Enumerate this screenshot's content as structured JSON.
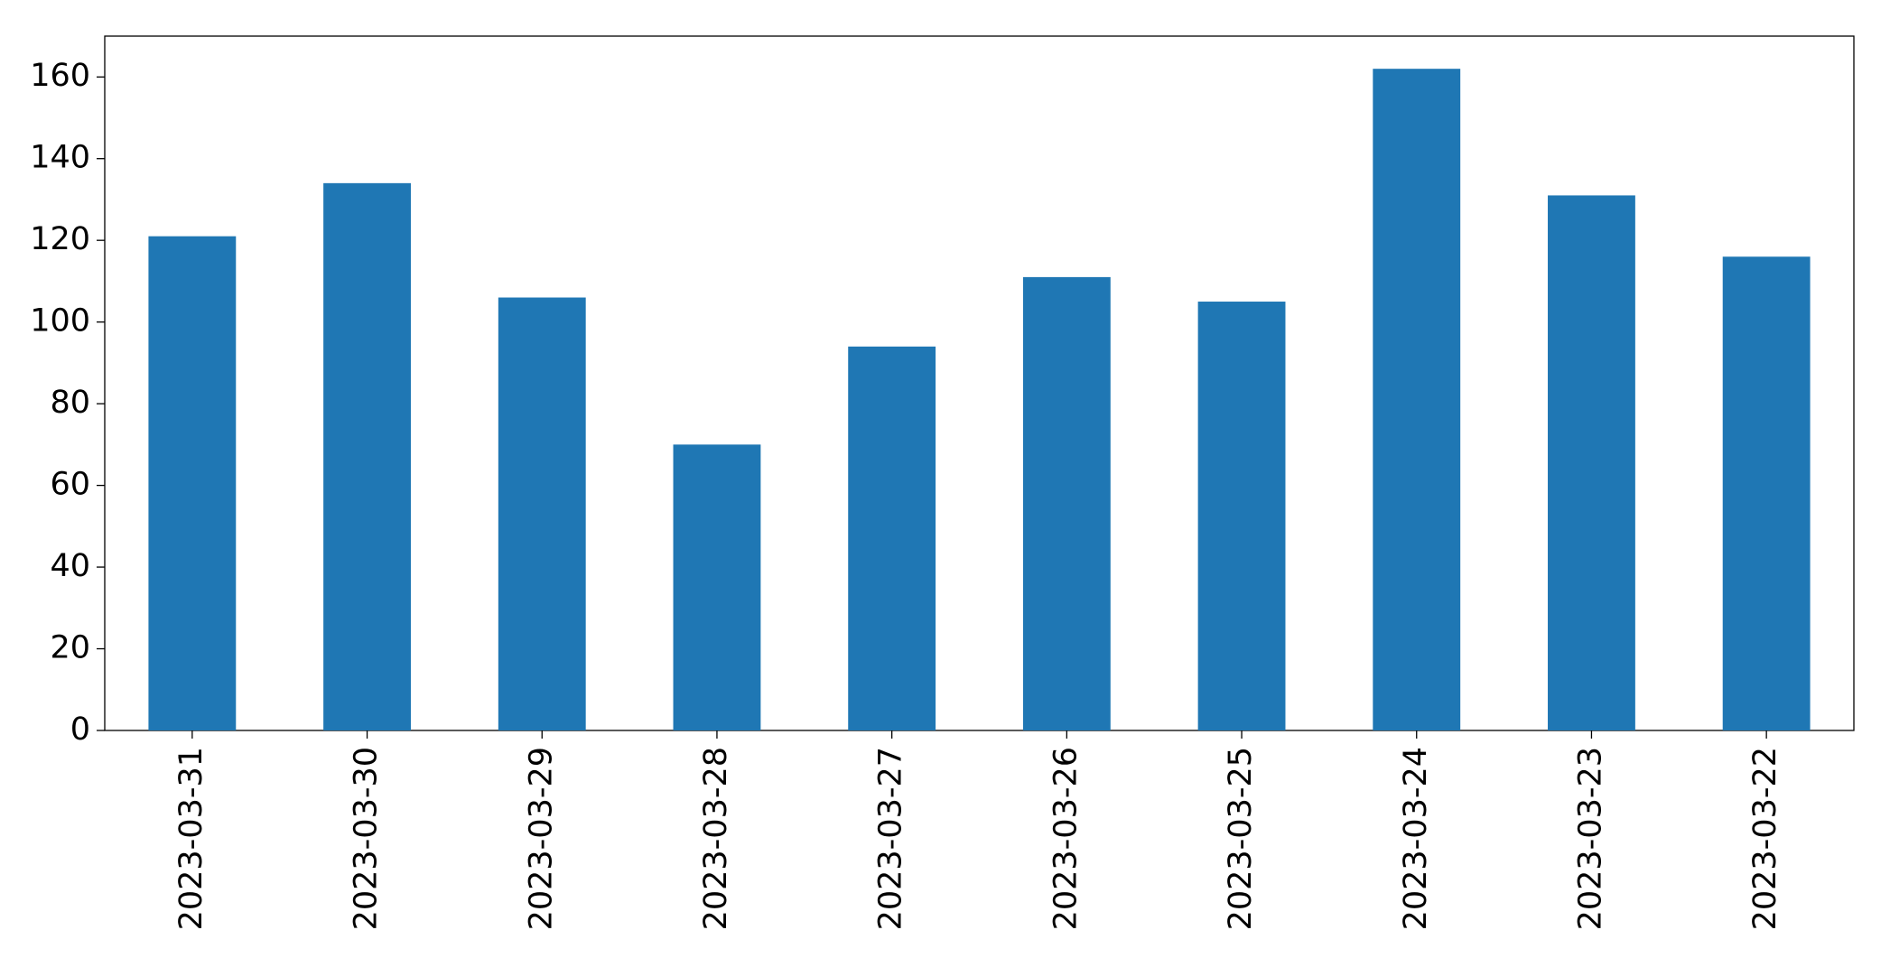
{
  "chart_data": {
    "type": "bar",
    "categories": [
      "2023-03-31",
      "2023-03-30",
      "2023-03-29",
      "2023-03-28",
      "2023-03-27",
      "2023-03-26",
      "2023-03-25",
      "2023-03-24",
      "2023-03-23",
      "2023-03-22"
    ],
    "values": [
      121,
      134,
      106,
      70,
      94,
      111,
      105,
      162,
      131,
      116
    ],
    "color": "#1f77b4",
    "ylim": [
      0,
      170
    ],
    "yticks": [
      0,
      20,
      40,
      60,
      80,
      100,
      120,
      140,
      160
    ],
    "grid": false
  }
}
